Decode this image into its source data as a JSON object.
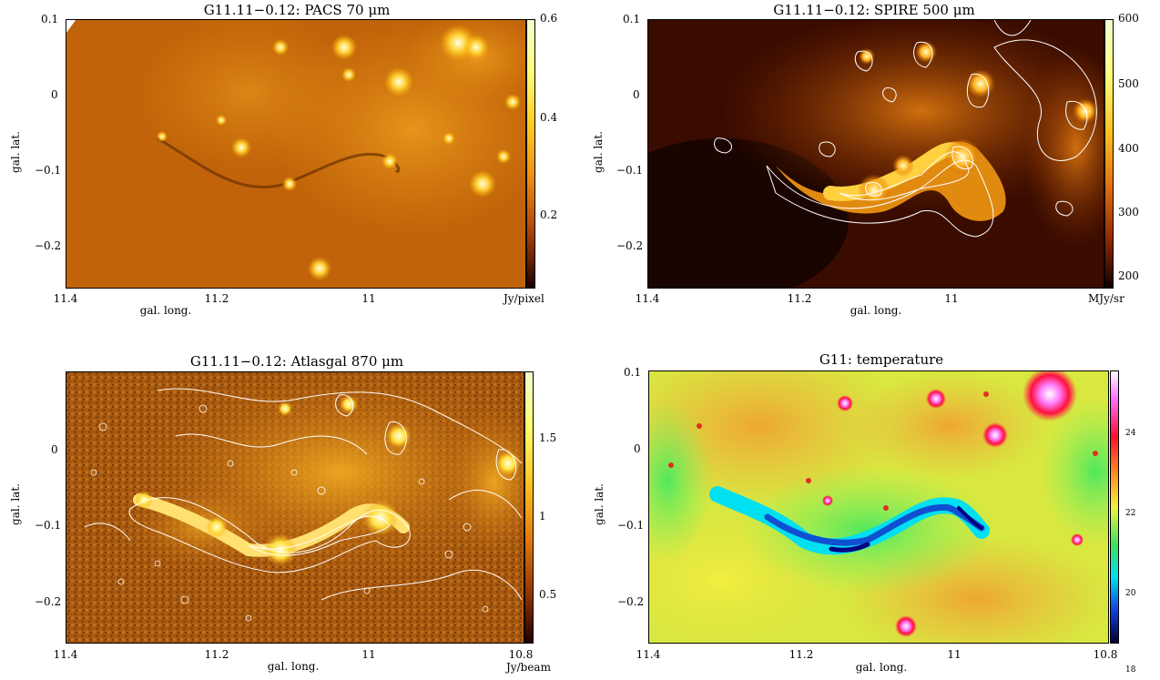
{
  "panels": [
    {
      "id": "pacs70",
      "title": "G11.11−0.12:  PACS 70 μm",
      "xlabel": "gal. long.",
      "ylabel": "gal. lat.",
      "xticks": [
        "11.4",
        "11.2",
        "11",
        ""
      ],
      "yticks": [
        "0.1",
        "0",
        "−0.1",
        "−0.2"
      ],
      "colorbar_ticks": [
        "0.6",
        "0.4",
        "0.2"
      ],
      "colorbar_unit": "Jy/pixel",
      "colormap": "heat"
    },
    {
      "id": "spire500",
      "title": "G11.11−0.12:  SPIRE 500 μm",
      "xlabel": "gal. long.",
      "ylabel": "gal. lat.",
      "xticks": [
        "11.4",
        "11.2",
        "11",
        ""
      ],
      "yticks": [
        "0.1",
        "0",
        "−0.1",
        "−0.2"
      ],
      "colorbar_ticks": [
        "600",
        "500",
        "400",
        "300",
        "200"
      ],
      "colorbar_unit": "MJy/sr",
      "colormap": "heat"
    },
    {
      "id": "atlasgal870",
      "title": "G11.11−0.12:  Atlasgal 870 μm",
      "xlabel": "gal. long.",
      "ylabel": "gal. lat.",
      "xticks": [
        "11.4",
        "11.2",
        "11",
        "10.8"
      ],
      "yticks": [
        "0",
        "−0.1",
        "−0.2"
      ],
      "colorbar_ticks": [
        "1.5",
        "1",
        "0.5"
      ],
      "colorbar_unit": "Jy/beam",
      "colormap": "heat"
    },
    {
      "id": "temperature",
      "title": "G11: temperature",
      "xlabel": "gal. long.",
      "ylabel": "gal. lat.",
      "xticks": [
        "11.4",
        "11.2",
        "11",
        "10.8"
      ],
      "yticks": [
        "0.1",
        "0",
        "−0.1",
        "−0.2"
      ],
      "colorbar_ticks": [
        "24",
        "22",
        "20",
        "18"
      ],
      "colorbar_unit": "",
      "colormap": "rainbow"
    }
  ]
}
